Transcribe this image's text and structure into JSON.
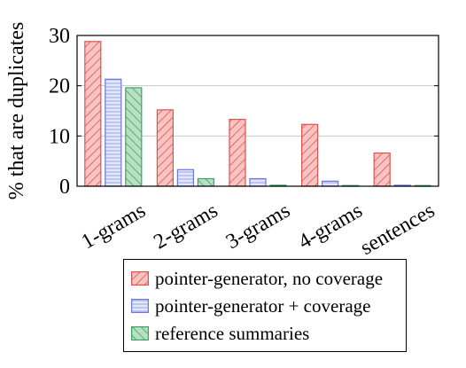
{
  "chart_data": {
    "type": "bar",
    "title": "",
    "xlabel": "",
    "ylabel": "% that are duplicates",
    "ylim": [
      0,
      30
    ],
    "yticks": [
      0,
      10,
      20,
      30
    ],
    "grid": true,
    "legend_position": "bottom",
    "categories": [
      "1-grams",
      "2-grams",
      "3-grams",
      "4-grams",
      "sentences"
    ],
    "series": [
      {
        "name": "pointer-generator, no coverage",
        "values": [
          28.8,
          15.2,
          13.3,
          12.3,
          6.6
        ],
        "color": "#e0514f",
        "fill": "#f7c4c2",
        "pattern": "diagonal-hatch-ne"
      },
      {
        "name": "pointer-generator + coverage",
        "values": [
          21.3,
          3.3,
          1.5,
          1.0,
          0.2
        ],
        "color": "#6b78e0",
        "fill": "#d4daf7",
        "pattern": "horizontal-lines"
      },
      {
        "name": "reference summaries",
        "values": [
          19.6,
          1.5,
          0.2,
          0.0,
          0.0
        ],
        "color": "#3fa363",
        "fill": "#b7e0c3",
        "pattern": "diagonal-hatch-nw"
      }
    ]
  }
}
